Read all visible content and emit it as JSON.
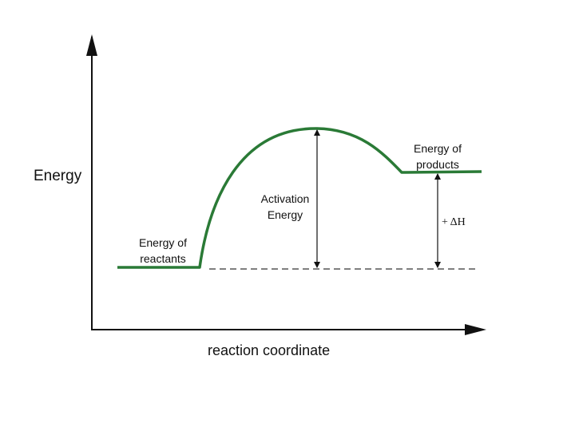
{
  "axes": {
    "y_label": "Energy",
    "x_label": "reaction coordinate"
  },
  "labels": {
    "reactants": [
      "Energy of",
      "reactants"
    ],
    "products": [
      "Energy of",
      "products"
    ],
    "activation": [
      "Activation",
      "Energy"
    ],
    "delta_h": "+ ΔH"
  },
  "colors": {
    "curve": "#2a7a36",
    "axes": "#111111",
    "arrows": "#111111",
    "dashed": "#333333"
  }
}
